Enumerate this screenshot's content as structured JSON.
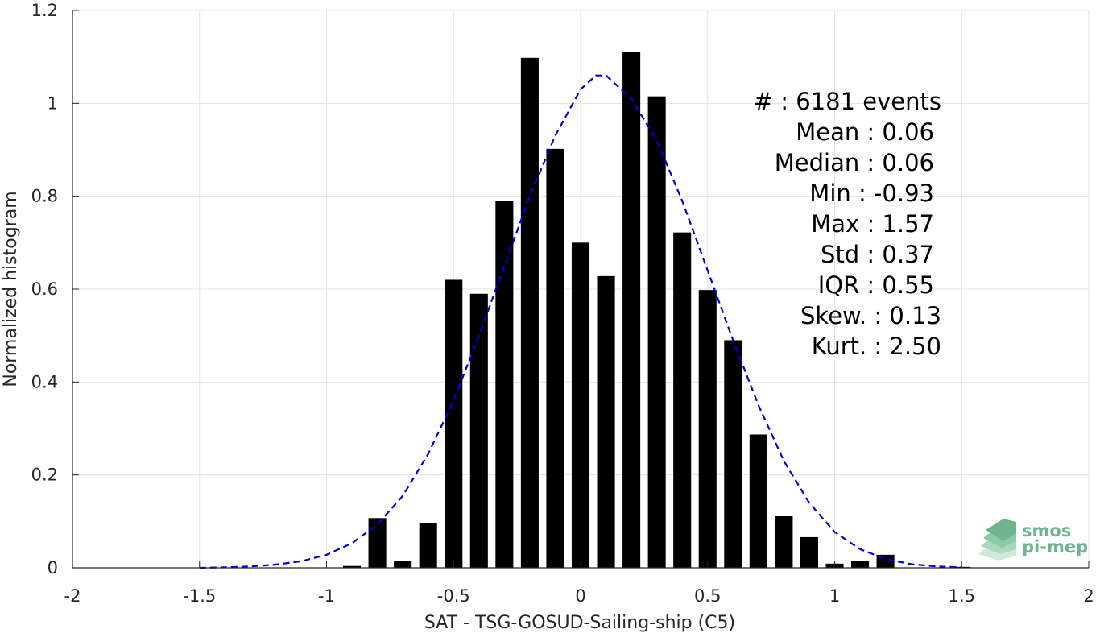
{
  "chart_data": {
    "type": "bar",
    "xlabel": "SAT - TSG-GOSUD-Sailing-ship (C5)",
    "ylabel": "Normalized histogram",
    "xlim": [
      -2,
      2
    ],
    "ylim": [
      0,
      1.2
    ],
    "x_ticks": [
      "-2",
      "-1.5",
      "-1",
      "-0.5",
      "0",
      "0.5",
      "1",
      "1.5",
      "2"
    ],
    "y_ticks": [
      "0",
      "0.2",
      "0.4",
      "0.6",
      "0.8",
      "1",
      "1.2"
    ],
    "grid": true,
    "bar_color": "#000000",
    "bar_width": 0.07,
    "bins": {
      "x": [
        -0.9,
        -0.8,
        -0.7,
        -0.6,
        -0.5,
        -0.4,
        -0.3,
        -0.2,
        -0.1,
        0.0,
        0.1,
        0.2,
        0.3,
        0.4,
        0.5,
        0.6,
        0.7,
        0.8,
        0.9,
        1.0,
        1.1,
        1.2,
        1.3,
        1.4,
        1.5
      ],
      "values": [
        0.004,
        0.107,
        0.014,
        0.097,
        0.62,
        0.59,
        0.79,
        1.098,
        0.902,
        0.7,
        0.628,
        1.11,
        1.015,
        0.722,
        0.598,
        0.49,
        0.287,
        0.111,
        0.066,
        0.009,
        0.014,
        0.028,
        0.0,
        0.0,
        0.002
      ]
    },
    "fit_curve": {
      "name": "normal fit",
      "style": "dashed",
      "color": "#0000dd",
      "x": [
        -1.5,
        -1.4,
        -1.3,
        -1.2,
        -1.1,
        -1.0,
        -0.9,
        -0.8,
        -0.7,
        -0.6,
        -0.5,
        -0.4,
        -0.3,
        -0.2,
        -0.1,
        0.0,
        0.06,
        0.1,
        0.2,
        0.3,
        0.4,
        0.5,
        0.6,
        0.7,
        0.8,
        0.9,
        1.0,
        1.1,
        1.2,
        1.3,
        1.4,
        1.5
      ],
      "y": [
        0.0,
        0.001,
        0.003,
        0.007,
        0.014,
        0.028,
        0.053,
        0.093,
        0.155,
        0.245,
        0.36,
        0.5,
        0.65,
        0.8,
        0.93,
        1.03,
        1.06,
        1.06,
        1.01,
        0.92,
        0.79,
        0.64,
        0.49,
        0.35,
        0.23,
        0.14,
        0.077,
        0.04,
        0.019,
        0.008,
        0.003,
        0.001
      ]
    },
    "annotations": [
      "#  : 6181 events",
      "Mean : 0.06",
      "Median : 0.06",
      "Min : -0.93",
      "Max : 1.57",
      "Std : 0.37",
      "IQR : 0.55",
      "Skew. : 0.13",
      "Kurt. : 2.50"
    ]
  },
  "logo": {
    "line1": "smos",
    "line2": "pi-mep",
    "color": "#6fb590"
  }
}
